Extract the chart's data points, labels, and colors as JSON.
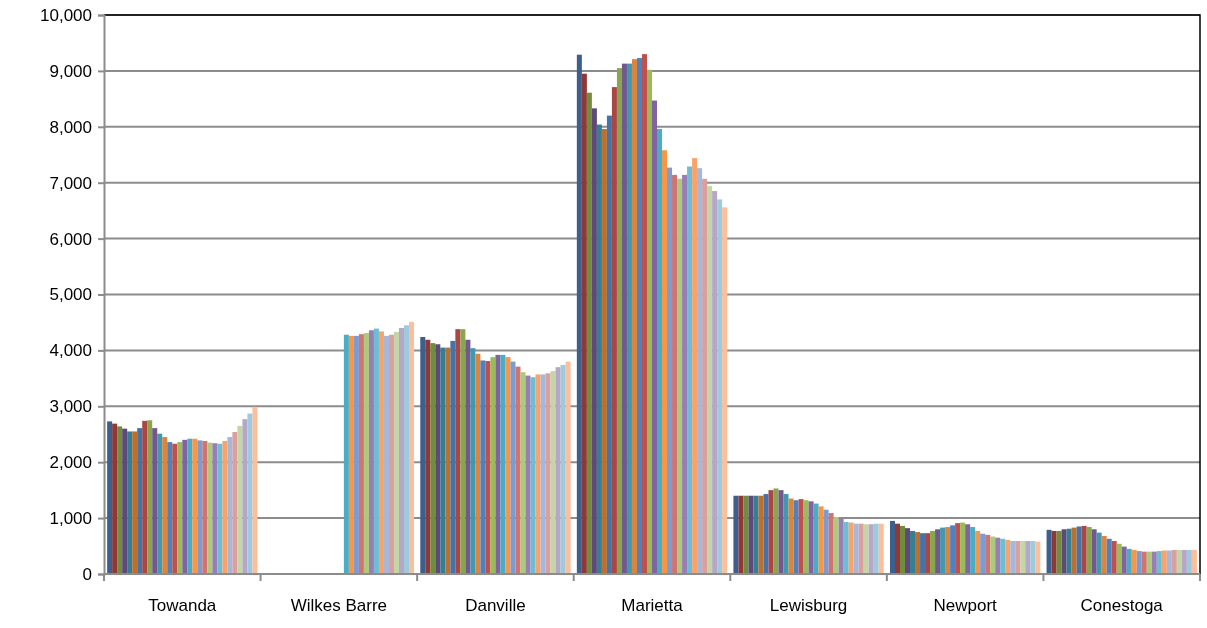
{
  "chart_data": {
    "type": "bar",
    "categories": [
      "Towanda",
      "Wilkes Barre",
      "Danville",
      "Marietta",
      "Lewisburg",
      "Newport",
      "Conestoga"
    ],
    "ylim": [
      0,
      10000
    ],
    "yticks": [
      {
        "value": 0,
        "label": "0"
      },
      {
        "value": 1000,
        "label": "1,000"
      },
      {
        "value": 2000,
        "label": "2,000"
      },
      {
        "value": 3000,
        "label": "3,000"
      },
      {
        "value": 4000,
        "label": "4,000"
      },
      {
        "value": 5000,
        "label": "5,000"
      },
      {
        "value": 6000,
        "label": "6,000"
      },
      {
        "value": 7000,
        "label": "7,000"
      },
      {
        "value": 8000,
        "label": "8,000"
      },
      {
        "value": 9000,
        "label": "9,000"
      },
      {
        "value": 10000,
        "label": "10,000"
      }
    ],
    "grid": "y",
    "series": [
      {
        "color": "#3c5f8e",
        "values": [
          2730,
          null,
          4240,
          9290,
          1400,
          950,
          790
        ]
      },
      {
        "color": "#8e3936",
        "values": [
          2690,
          null,
          4190,
          8950,
          1400,
          900,
          770
        ]
      },
      {
        "color": "#718c3c",
        "values": [
          2640,
          null,
          4130,
          8610,
          1400,
          860,
          770
        ]
      },
      {
        "color": "#5d4a7b",
        "values": [
          2600,
          null,
          4110,
          8330,
          1400,
          820,
          800
        ]
      },
      {
        "color": "#357e93",
        "values": [
          2550,
          null,
          4050,
          8040,
          1400,
          770,
          810
        ]
      },
      {
        "color": "#bd6f2e",
        "values": [
          2550,
          null,
          4050,
          7960,
          1400,
          750,
          830
        ]
      },
      {
        "color": "#4572a7",
        "values": [
          2610,
          null,
          4170,
          8200,
          1430,
          730,
          850
        ]
      },
      {
        "color": "#aa4643",
        "values": [
          2740,
          null,
          4380,
          8710,
          1500,
          730,
          860
        ]
      },
      {
        "color": "#89a54e",
        "values": [
          2750,
          null,
          4380,
          9050,
          1530,
          770,
          840
        ]
      },
      {
        "color": "#71588f",
        "values": [
          2610,
          null,
          4190,
          9130,
          1500,
          800,
          800
        ]
      },
      {
        "color": "#4198af",
        "values": [
          2510,
          null,
          4040,
          9130,
          1430,
          830,
          740
        ]
      },
      {
        "color": "#db843d",
        "values": [
          2450,
          null,
          3940,
          9210,
          1350,
          840,
          680
        ]
      },
      {
        "color": "#4f81bd",
        "values": [
          2360,
          null,
          3820,
          9230,
          1320,
          870,
          630
        ]
      },
      {
        "color": "#c0504d",
        "values": [
          2330,
          null,
          3810,
          9300,
          1340,
          910,
          590
        ]
      },
      {
        "color": "#9bbb59",
        "values": [
          2360,
          null,
          3880,
          9020,
          1320,
          920,
          540
        ]
      },
      {
        "color": "#8064a2",
        "values": [
          2400,
          null,
          3920,
          8470,
          1300,
          890,
          490
        ]
      },
      {
        "color": "#4bacc6",
        "values": [
          2420,
          4280,
          3920,
          7960,
          1260,
          840,
          450
        ]
      },
      {
        "color": "#f79646",
        "values": [
          2420,
          4260,
          3880,
          7580,
          1210,
          770,
          430
        ]
      },
      {
        "color": "#7c9bd0",
        "values": [
          2390,
          4260,
          3800,
          7270,
          1150,
          720,
          410
        ]
      },
      {
        "color": "#ce7572",
        "values": [
          2380,
          4290,
          3710,
          7140,
          1090,
          700,
          400
        ]
      },
      {
        "color": "#aec97a",
        "values": [
          2350,
          4310,
          3610,
          7070,
          1020,
          670,
          400
        ]
      },
      {
        "color": "#977fb5",
        "values": [
          2340,
          4360,
          3550,
          7140,
          990,
          650,
          400
        ]
      },
      {
        "color": "#6dbdd4",
        "values": [
          2330,
          4390,
          3520,
          7290,
          930,
          630,
          410
        ]
      },
      {
        "color": "#f9a36c",
        "values": [
          2380,
          4340,
          3570,
          7440,
          920,
          610,
          420
        ]
      },
      {
        "color": "#a5b7db",
        "values": [
          2450,
          4260,
          3570,
          7260,
          900,
          590,
          420
        ]
      },
      {
        "color": "#d9a09f",
        "values": [
          2540,
          4280,
          3590,
          7070,
          900,
          590,
          430
        ]
      },
      {
        "color": "#c4d6a5",
        "values": [
          2650,
          4330,
          3630,
          6940,
          890,
          590,
          430
        ]
      },
      {
        "color": "#b4a7c8",
        "values": [
          2770,
          4400,
          3700,
          6850,
          890,
          590,
          430
        ]
      },
      {
        "color": "#9fcadd",
        "values": [
          2870,
          4450,
          3740,
          6700,
          900,
          590,
          430
        ]
      },
      {
        "color": "#fbbf9c",
        "values": [
          2990,
          4510,
          3800,
          6560,
          900,
          580,
          430
        ]
      }
    ]
  }
}
